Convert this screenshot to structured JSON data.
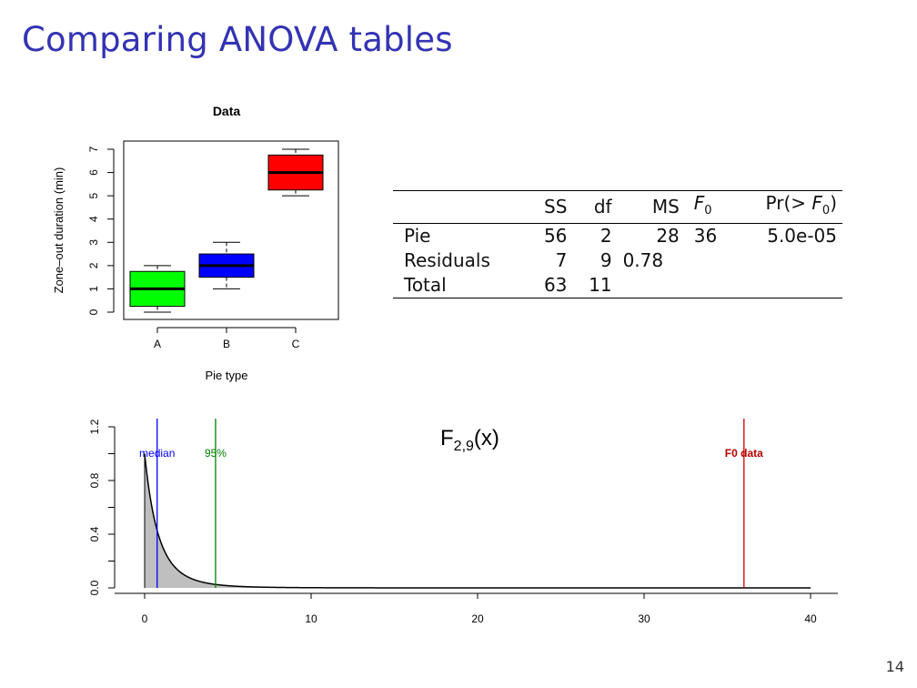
{
  "slide": {
    "title": "Comparing ANOVA tables",
    "page_number": "14"
  },
  "boxplot": {
    "title": "Data",
    "xlabel": "Pie type",
    "ylabel": "Zone–out duration (min)",
    "yticks": [
      "0",
      "1",
      "2",
      "3",
      "4",
      "5",
      "6",
      "7"
    ]
  },
  "anova_table": {
    "headers": [
      "",
      "SS",
      "df",
      "MS",
      "F0",
      "Pr(> F0)"
    ],
    "header_display": {
      "ss": "SS",
      "df": "df",
      "ms": "MS",
      "f": "F",
      "f_sub": "0",
      "pr_pre": "Pr(> ",
      "pr_f": "F",
      "pr_sub": "0",
      "pr_post": ")"
    },
    "rows": [
      {
        "label": "Pie",
        "ss": "56",
        "df": "2",
        "ms": "28",
        "f": "36",
        "p": "5.0e-05"
      },
      {
        "label": "Residuals",
        "ss": "7",
        "df": "9",
        "ms": "0.78",
        "f": "",
        "p": ""
      },
      {
        "label": "Total",
        "ss": "63",
        "df": "11",
        "ms": "",
        "f": "",
        "p": ""
      }
    ]
  },
  "density_plot": {
    "title_main": "F",
    "title_sub": "2,9",
    "title_post": "(x)",
    "yticks": [
      "0.0",
      "0.4",
      "0.8",
      "1.2"
    ],
    "xticks": [
      "0",
      "10",
      "20",
      "30",
      "40"
    ],
    "markers": [
      {
        "label": "median",
        "x": 0.75,
        "color": "#0000ff",
        "bold": false
      },
      {
        "label": "95%",
        "x": 4.26,
        "color": "#008000",
        "bold": false
      },
      {
        "label": "F0 data",
        "x": 36,
        "color": "#b30000",
        "bold": true
      }
    ]
  },
  "chart_data": [
    {
      "type": "box",
      "title": "Data",
      "xlabel": "Pie type",
      "ylabel": "Zone–out duration (min)",
      "ylim": [
        0,
        7
      ],
      "categories": [
        "A",
        "B",
        "C"
      ],
      "colors": [
        "#00ff00",
        "#0000ff",
        "#ff0000"
      ],
      "stats": [
        {
          "name": "A",
          "min": 0,
          "q1": 0.25,
          "median": 1,
          "q3": 1.75,
          "max": 2
        },
        {
          "name": "B",
          "min": 1,
          "q1": 1.5,
          "median": 2,
          "q3": 2.5,
          "max": 3
        },
        {
          "name": "C",
          "min": 5,
          "q1": 5.25,
          "median": 6,
          "q3": 6.75,
          "max": 7
        }
      ]
    },
    {
      "type": "area",
      "title": "F2,9(x)",
      "xlabel": "",
      "ylabel": "",
      "xlim": [
        0,
        40
      ],
      "ylim": [
        0,
        1.2
      ],
      "df1": 2,
      "df2": 9,
      "shade_to": 11,
      "fill": "#bfbfbf",
      "vlines": [
        {
          "name": "median",
          "x": 0.75,
          "color": "#0000ff"
        },
        {
          "name": "95%",
          "x": 4.26,
          "color": "#008000"
        },
        {
          "name": "F0 data",
          "x": 36,
          "color": "#cc0000"
        }
      ]
    }
  ]
}
